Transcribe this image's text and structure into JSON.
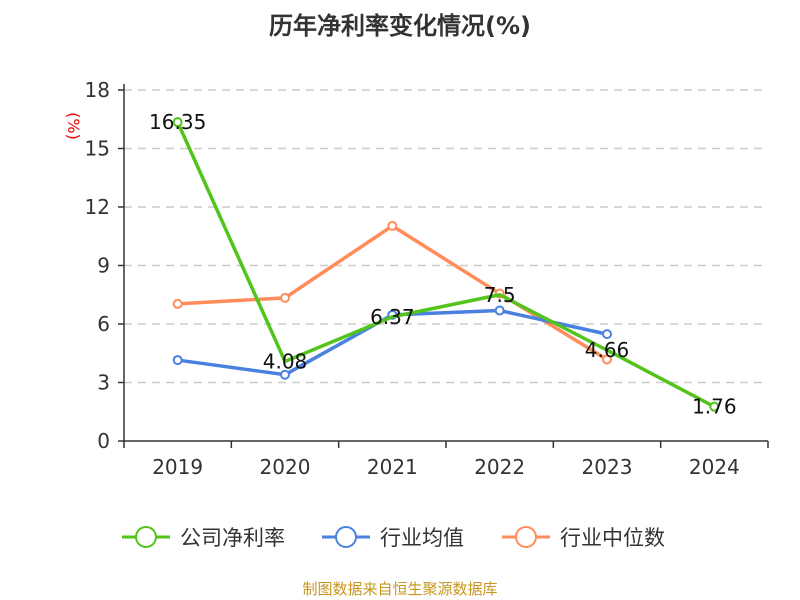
{
  "chart_data": {
    "type": "line",
    "title": "历年净利率变化情况(%)",
    "ylabel": "(%)",
    "categories": [
      "2019",
      "2020",
      "2021",
      "2022",
      "2023",
      "2024"
    ],
    "ylim": [
      0,
      18
    ],
    "yticks": [
      0,
      3,
      6,
      9,
      12,
      15,
      18
    ],
    "grid": true,
    "legend_position": "bottom",
    "series": [
      {
        "name": "公司净利率",
        "color": "#52c41a",
        "values": [
          16.35,
          4.08,
          6.37,
          7.5,
          4.66,
          1.76
        ],
        "labels": [
          "16.35",
          "4.08",
          "6.37",
          "7.5",
          "4.66",
          "1.76"
        ]
      },
      {
        "name": "行业均值",
        "color": "#4a80e0",
        "values": [
          4.15,
          3.4,
          6.47,
          6.69,
          5.48,
          null
        ]
      },
      {
        "name": "行业中位数",
        "color": "#ff8c5a",
        "values": [
          7.03,
          7.34,
          11.03,
          7.56,
          4.18,
          null
        ]
      }
    ]
  },
  "source": "制图数据来自恒生聚源数据库"
}
